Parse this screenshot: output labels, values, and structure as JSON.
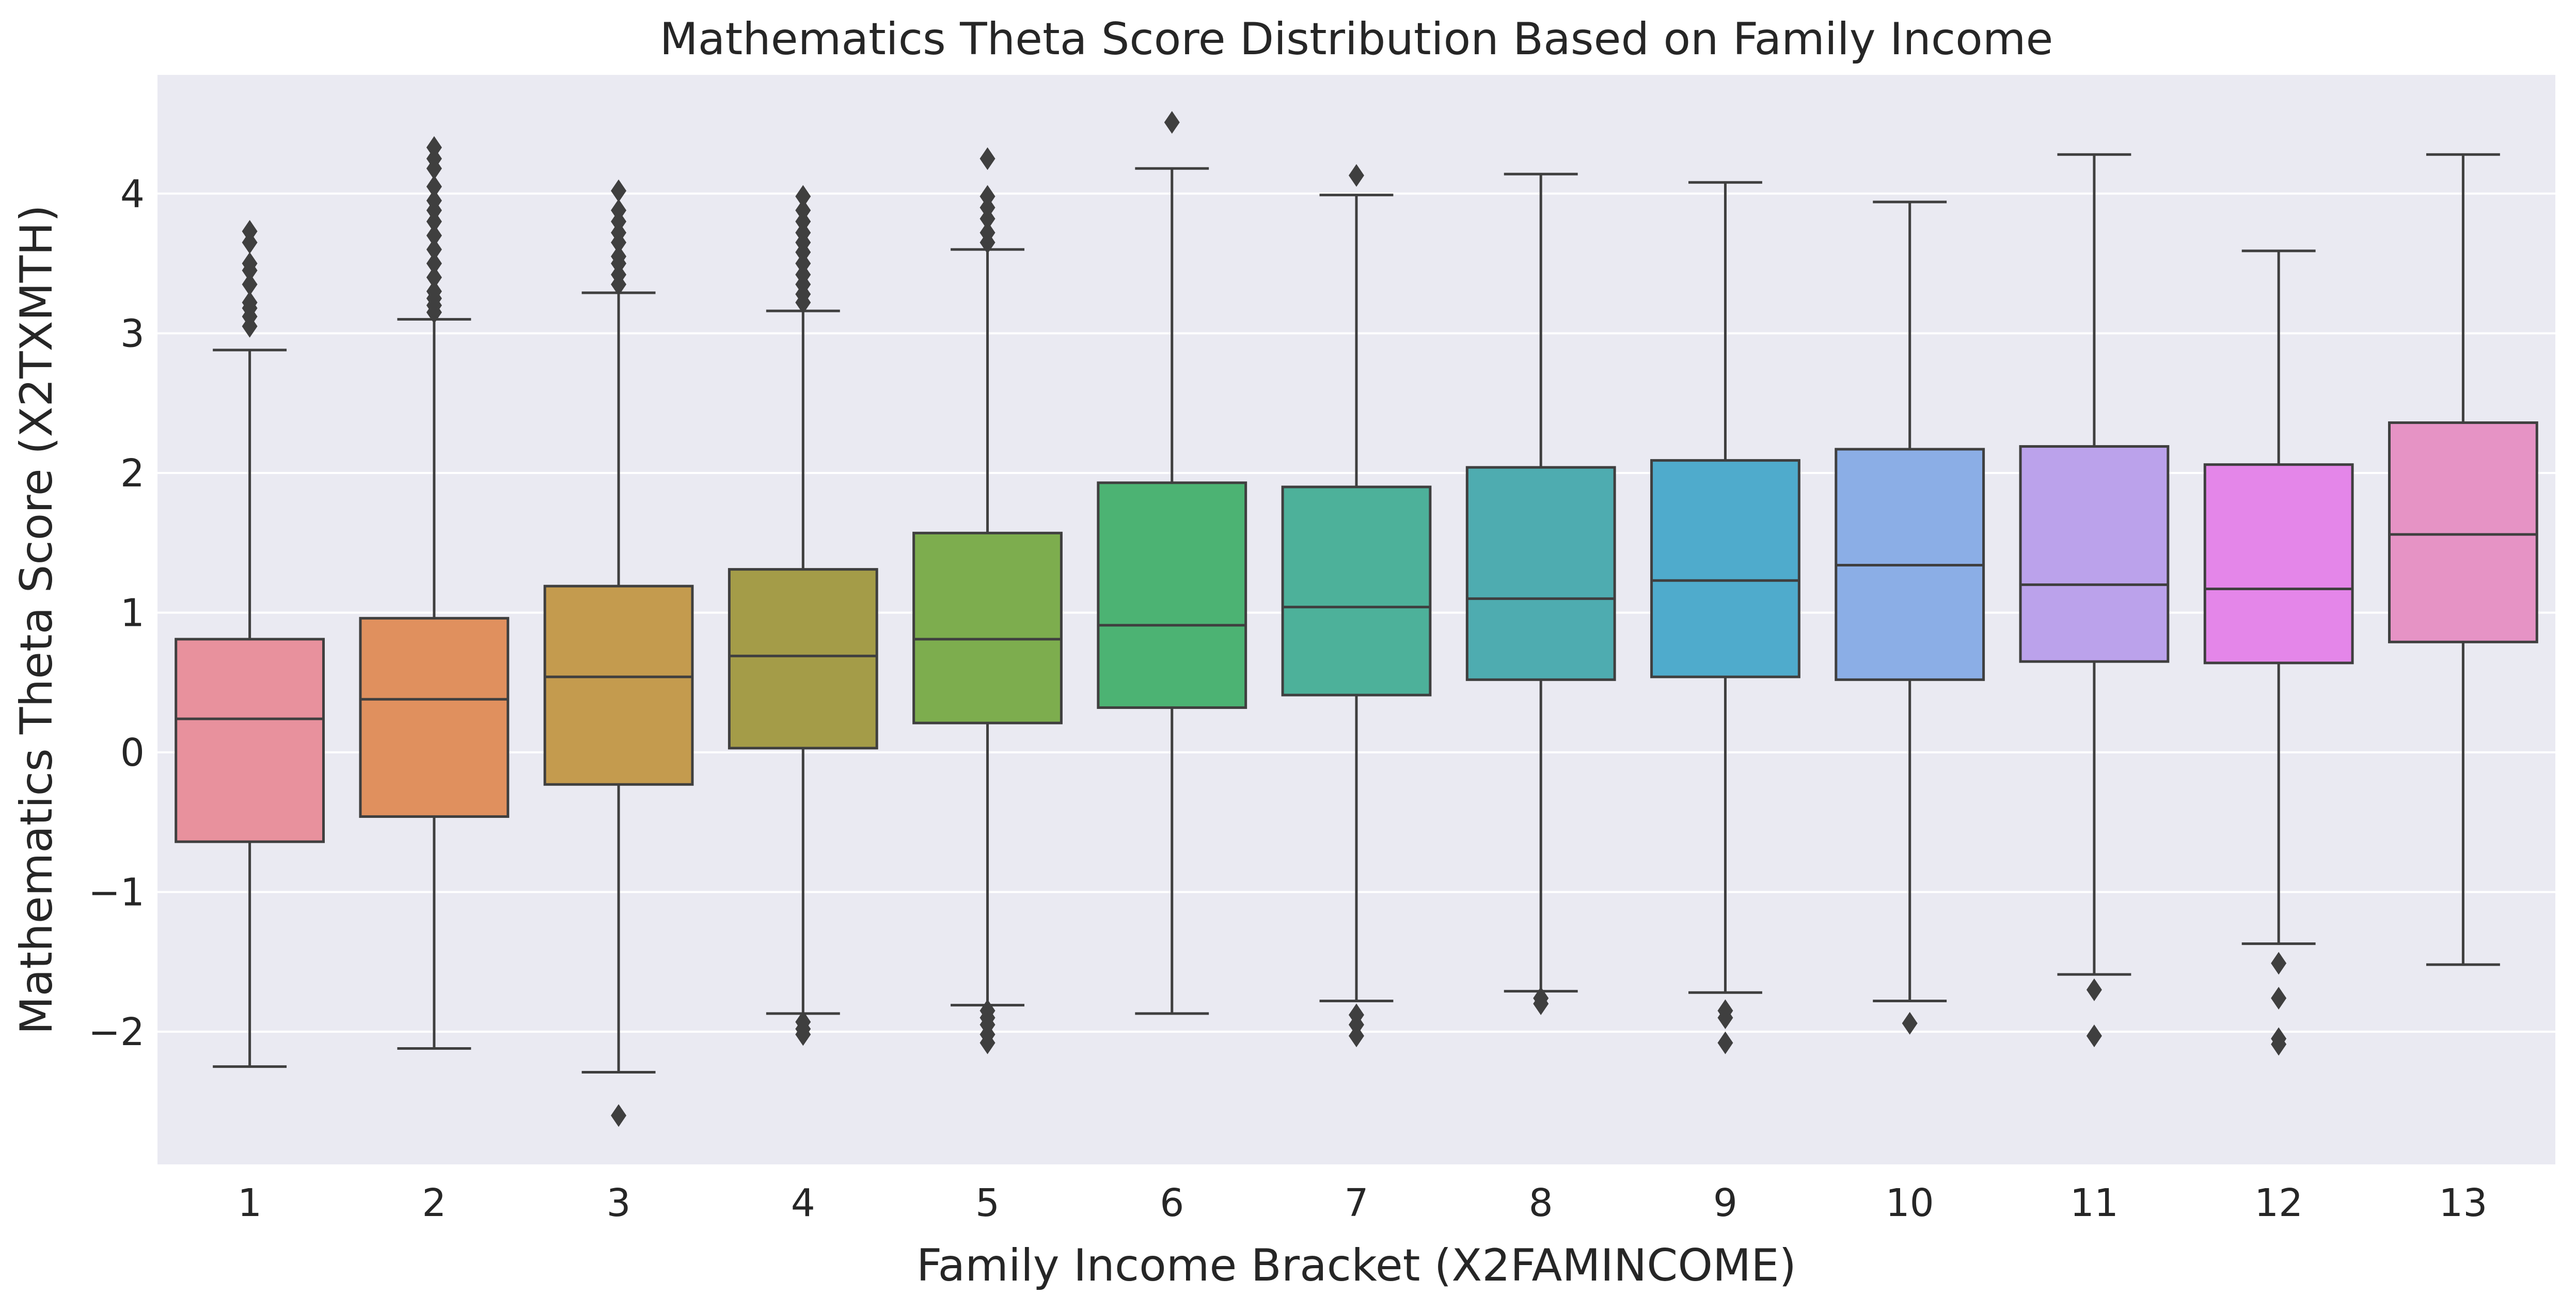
{
  "chart_data": {
    "type": "box",
    "title": "Mathematics Theta Score Distribution Based on Family Income",
    "xlabel": "Family Income Bracket (X2FAMINCOME)",
    "ylabel": "Mathematics Theta Score (X2TXMTH)",
    "ylim": [
      -2.95,
      4.85
    ],
    "yticks": [
      -2,
      -1,
      0,
      1,
      2,
      3,
      4
    ],
    "ytick_labels": [
      "−2",
      "−1",
      "0",
      "1",
      "2",
      "3",
      "4"
    ],
    "grid": true,
    "background": "#eaeaf2",
    "categories": [
      "1",
      "2",
      "3",
      "4",
      "5",
      "6",
      "7",
      "8",
      "9",
      "10",
      "11",
      "12",
      "13"
    ],
    "boxes": [
      {
        "category": "1",
        "color": "#e8919d",
        "whisker_low": -2.25,
        "q1": -0.64,
        "median": 0.24,
        "q3": 0.81,
        "whisker_high": 2.88,
        "outliers": [
          3.05,
          3.12,
          3.18,
          3.22,
          3.35,
          3.45,
          3.5,
          3.65,
          3.73
        ]
      },
      {
        "category": "2",
        "color": "#e0905e",
        "whisker_low": -2.12,
        "q1": -0.46,
        "median": 0.38,
        "q3": 0.96,
        "whisker_high": 3.1,
        "outliers": [
          3.15,
          3.2,
          3.25,
          3.3,
          3.4,
          3.5,
          3.6,
          3.7,
          3.8,
          3.88,
          3.95,
          4.05,
          4.18,
          4.25,
          4.33
        ]
      },
      {
        "category": "3",
        "color": "#c49b4e",
        "whisker_low": -2.29,
        "q1": -0.23,
        "median": 0.54,
        "q3": 1.19,
        "whisker_high": 3.29,
        "outliers": [
          -2.6,
          3.35,
          3.42,
          3.5,
          3.55,
          3.65,
          3.72,
          3.8,
          3.88,
          4.02
        ]
      },
      {
        "category": "4",
        "color": "#a49c48",
        "whisker_low": -1.87,
        "q1": 0.03,
        "median": 0.69,
        "q3": 1.31,
        "whisker_high": 3.16,
        "outliers": [
          -1.93,
          -1.98,
          -2.02,
          3.22,
          3.28,
          3.35,
          3.42,
          3.5,
          3.58,
          3.65,
          3.72,
          3.8,
          3.88,
          3.98
        ]
      },
      {
        "category": "5",
        "color": "#7dad4e",
        "whisker_low": -1.81,
        "q1": 0.21,
        "median": 0.81,
        "q3": 1.57,
        "whisker_high": 3.6,
        "outliers": [
          -1.85,
          -1.9,
          -1.95,
          -2.02,
          -2.08,
          3.65,
          3.72,
          3.82,
          3.9,
          3.98,
          4.25
        ]
      },
      {
        "category": "6",
        "color": "#4cb373",
        "whisker_low": -1.87,
        "q1": 0.32,
        "median": 0.91,
        "q3": 1.93,
        "whisker_high": 4.18,
        "outliers": [
          4.51
        ]
      },
      {
        "category": "7",
        "color": "#4db19a",
        "whisker_low": -1.78,
        "q1": 0.41,
        "median": 1.04,
        "q3": 1.9,
        "whisker_high": 3.99,
        "outliers": [
          -1.88,
          -1.95,
          -2.03,
          4.13
        ]
      },
      {
        "category": "8",
        "color": "#4eacb0",
        "whisker_low": -1.71,
        "q1": 0.52,
        "median": 1.1,
        "q3": 2.04,
        "whisker_high": 4.14,
        "outliers": [
          -1.76,
          -1.8
        ]
      },
      {
        "category": "9",
        "color": "#4fabcc",
        "whisker_low": -1.72,
        "q1": 0.54,
        "median": 1.23,
        "q3": 2.09,
        "whisker_high": 4.08,
        "outliers": [
          -1.85,
          -1.9,
          -2.08
        ]
      },
      {
        "category": "10",
        "color": "#8baee6",
        "whisker_low": -1.78,
        "q1": 0.52,
        "median": 1.34,
        "q3": 2.17,
        "whisker_high": 3.94,
        "outliers": [
          -1.94
        ]
      },
      {
        "category": "11",
        "color": "#bba2eb",
        "whisker_low": -1.59,
        "q1": 0.65,
        "median": 1.2,
        "q3": 2.19,
        "whisker_high": 4.28,
        "outliers": [
          -1.7,
          -2.03
        ]
      },
      {
        "category": "12",
        "color": "#e486e9",
        "whisker_low": -1.37,
        "q1": 0.64,
        "median": 1.17,
        "q3": 2.06,
        "whisker_high": 3.59,
        "outliers": [
          -1.51,
          -1.76,
          -2.05,
          -2.09
        ]
      },
      {
        "category": "13",
        "color": "#e693c5",
        "whisker_low": -1.52,
        "q1": 0.79,
        "median": 1.56,
        "q3": 2.36,
        "whisker_high": 4.28,
        "outliers": []
      }
    ]
  }
}
